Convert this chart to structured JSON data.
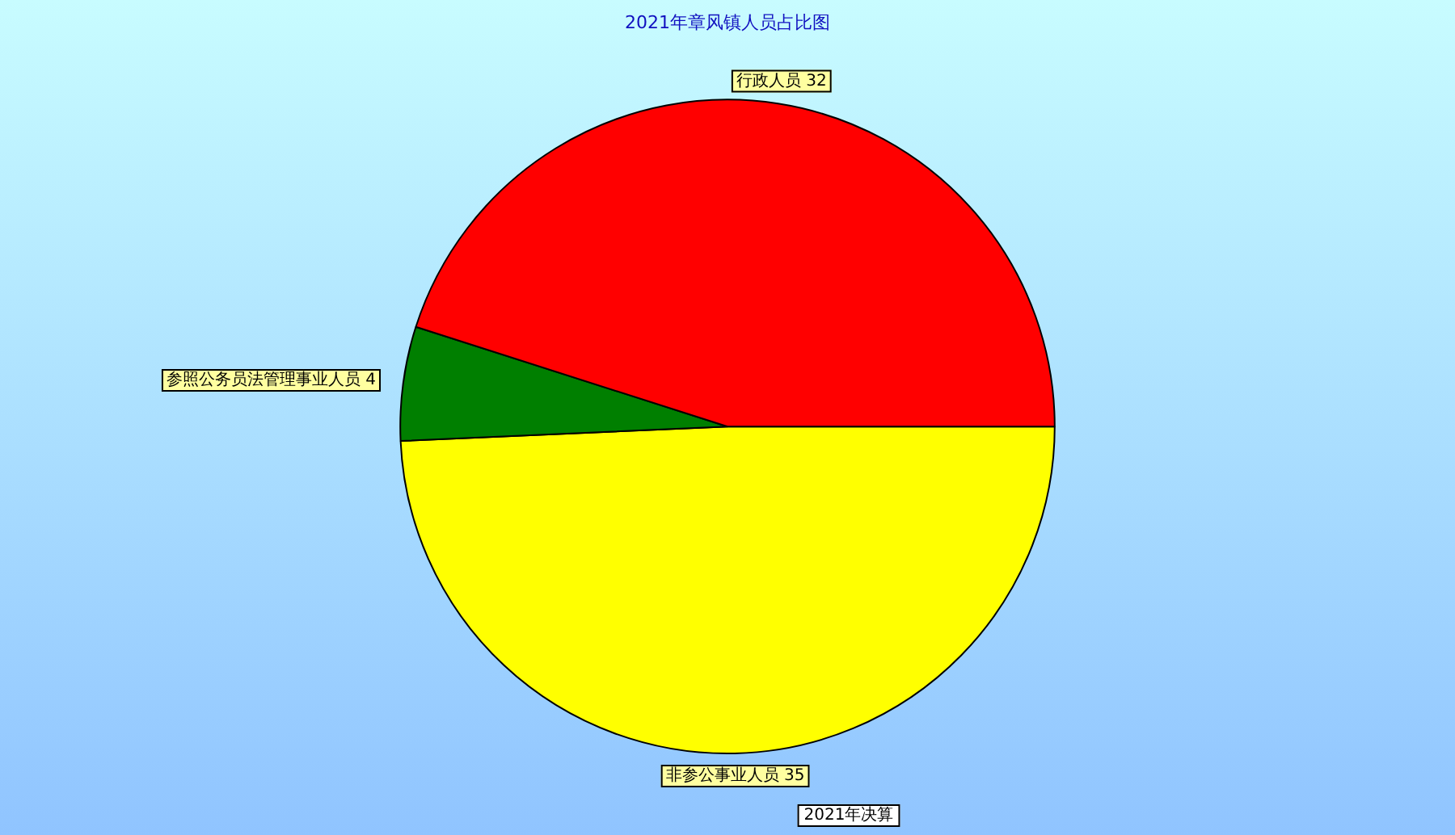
{
  "chart_data": {
    "type": "pie",
    "title": "2021年章风镇人员占比图",
    "annotations": [
      "2021年决算"
    ],
    "categories": [
      "非参公事业人员",
      "参照公务员法管理事业人员",
      "行政人员"
    ],
    "values": [
      35,
      4,
      32
    ],
    "colors": [
      "#ffff00",
      "#007f00",
      "#ff0000"
    ],
    "value_labels": [
      "35",
      "4",
      "32"
    ],
    "legend": false
  }
}
